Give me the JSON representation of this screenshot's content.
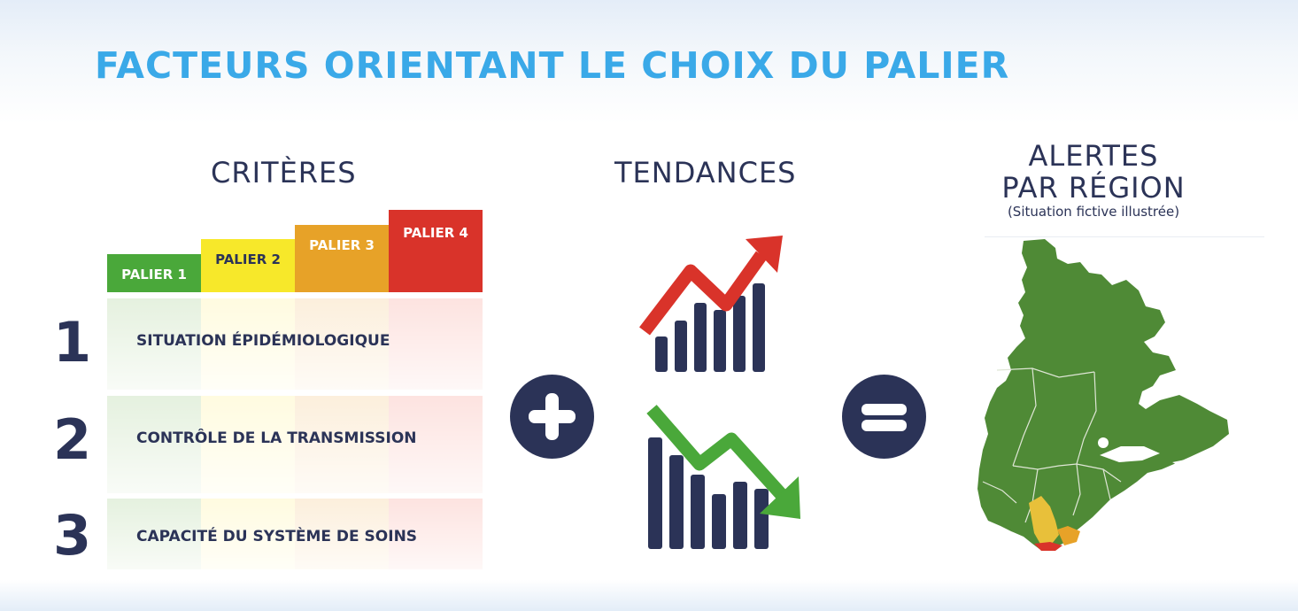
{
  "title": "FACTEURS ORIENTANT LE CHOIX DU PALIER",
  "columns": {
    "criteres": "CRITÈRES",
    "tendances": "TENDANCES",
    "alertes_line1": "ALERTES",
    "alertes_line2": "PAR RÉGION",
    "alertes_note": "(Situation fictive illustrée)"
  },
  "paliers": [
    {
      "label": "PALIER 1",
      "color": "#4aa83a"
    },
    {
      "label": "PALIER 2",
      "color": "#f7e82a"
    },
    {
      "label": "PALIER 3",
      "color": "#e7a228"
    },
    {
      "label": "PALIER 4",
      "color": "#d9332a"
    }
  ],
  "criteria": [
    {
      "number": "1",
      "label": "SITUATION ÉPIDÉMIOLOGIQUE"
    },
    {
      "number": "2",
      "label": "CONTRÔLE DE LA TRANSMISSION"
    },
    {
      "number": "3",
      "label": "CAPACITÉ DU SYSTÈME DE SOINS"
    }
  ],
  "operators": {
    "plus": "plus-icon",
    "equals": "equals-icon"
  },
  "trend_icons": {
    "up": "trend-up-icon",
    "down": "trend-down-icon"
  },
  "colors": {
    "title": "#3aa9e8",
    "navy": "#2b3357",
    "map_green": "#4f8a36"
  }
}
